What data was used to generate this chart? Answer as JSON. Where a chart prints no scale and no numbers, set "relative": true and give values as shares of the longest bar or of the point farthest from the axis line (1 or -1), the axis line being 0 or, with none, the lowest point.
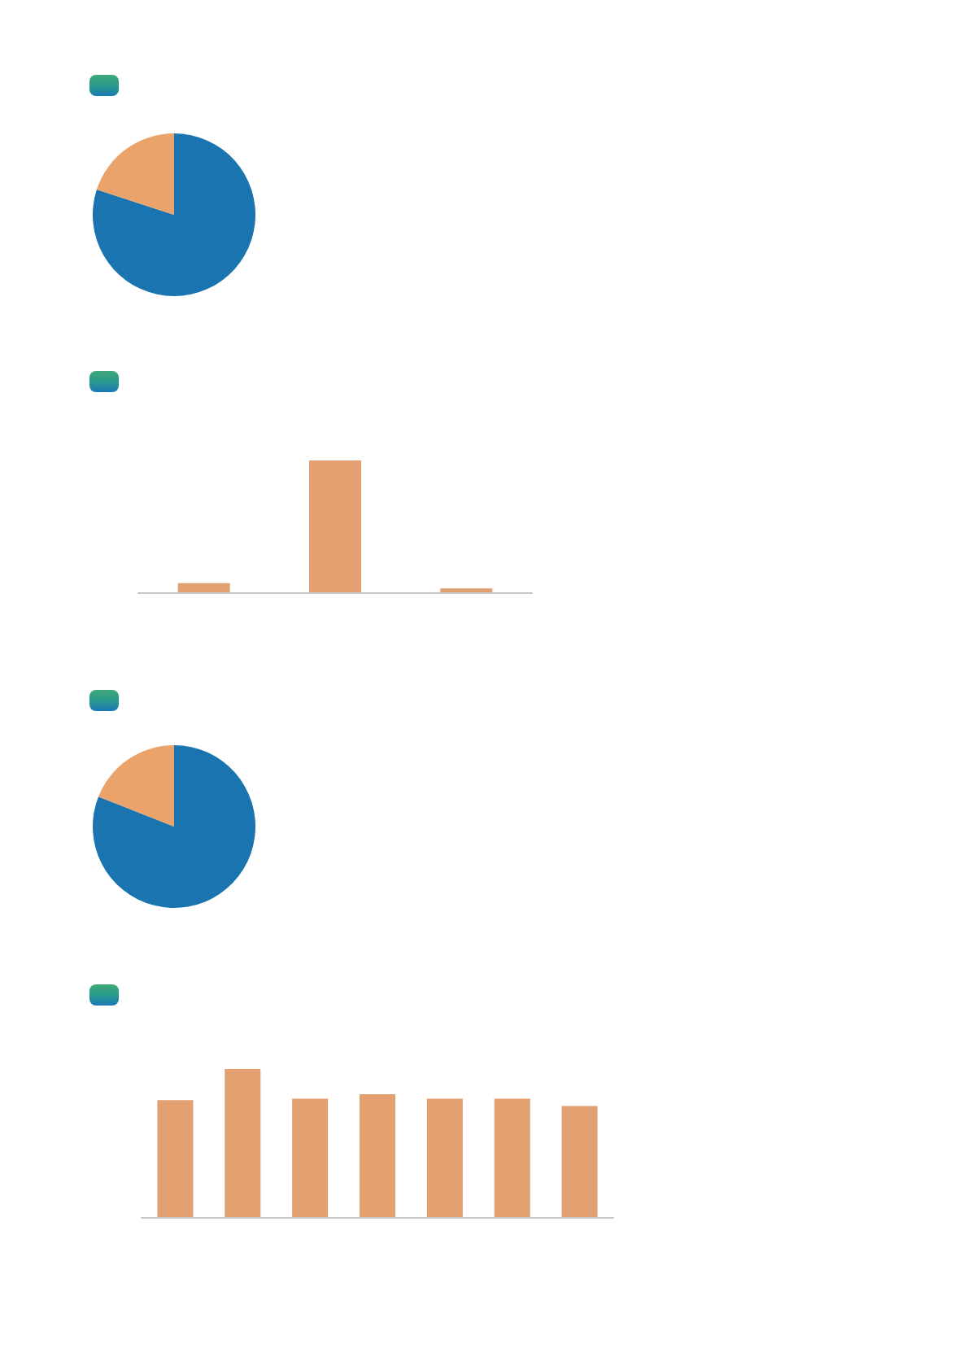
{
  "chart_data": [
    {
      "type": "pie",
      "categories": [
        null,
        null
      ],
      "values": [
        80,
        20
      ],
      "colors": [
        "#1a74b0",
        "#e9a36b"
      ]
    },
    {
      "type": "bar",
      "categories": [
        null,
        null,
        null
      ],
      "values": [
        0.07,
        1,
        0.03
      ],
      "color": "#e3a070",
      "relative": true
    },
    {
      "type": "pie",
      "categories": [
        null,
        null
      ],
      "values": [
        81,
        19
      ],
      "colors": [
        "#1a74b0",
        "#e9a36b"
      ]
    },
    {
      "type": "bar",
      "categories": [
        null,
        null,
        null,
        null,
        null,
        null,
        null
      ],
      "values": [
        0.79,
        1,
        0.8,
        0.83,
        0.8,
        0.8,
        0.75
      ],
      "color": "#e3a070",
      "relative": true
    }
  ]
}
